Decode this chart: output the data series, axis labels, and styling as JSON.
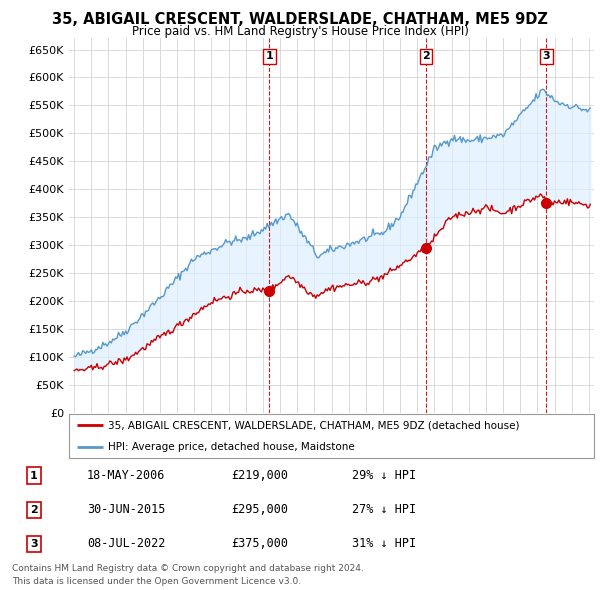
{
  "title": "35, ABIGAIL CRESCENT, WALDERSLADE, CHATHAM, ME5 9DZ",
  "subtitle": "Price paid vs. HM Land Registry's House Price Index (HPI)",
  "property_label": "35, ABIGAIL CRESCENT, WALDERSLADE, CHATHAM, ME5 9DZ (detached house)",
  "hpi_label": "HPI: Average price, detached house, Maidstone",
  "transactions": [
    {
      "num": 1,
      "date": "18-MAY-2006",
      "price": 219000,
      "x_year": 2006.38,
      "hpi_pct": "29% ↓ HPI"
    },
    {
      "num": 2,
      "date": "30-JUN-2015",
      "price": 295000,
      "x_year": 2015.5,
      "hpi_pct": "27% ↓ HPI"
    },
    {
      "num": 3,
      "date": "08-JUL-2022",
      "price": 375000,
      "x_year": 2022.52,
      "hpi_pct": "31% ↓ HPI"
    }
  ],
  "footnote1": "Contains HM Land Registry data © Crown copyright and database right 2024.",
  "footnote2": "This data is licensed under the Open Government Licence v3.0.",
  "ylim": [
    0,
    670000
  ],
  "yticks": [
    0,
    50000,
    100000,
    150000,
    200000,
    250000,
    300000,
    350000,
    400000,
    450000,
    500000,
    550000,
    600000,
    650000
  ],
  "xlim_start": 1994.7,
  "xlim_end": 2025.3,
  "property_color": "#cc0000",
  "hpi_color": "#5599cc",
  "fill_color": "#ddeeff",
  "background_color": "#ffffff",
  "grid_color": "#cccccc",
  "dashed_color": "#cc0000"
}
